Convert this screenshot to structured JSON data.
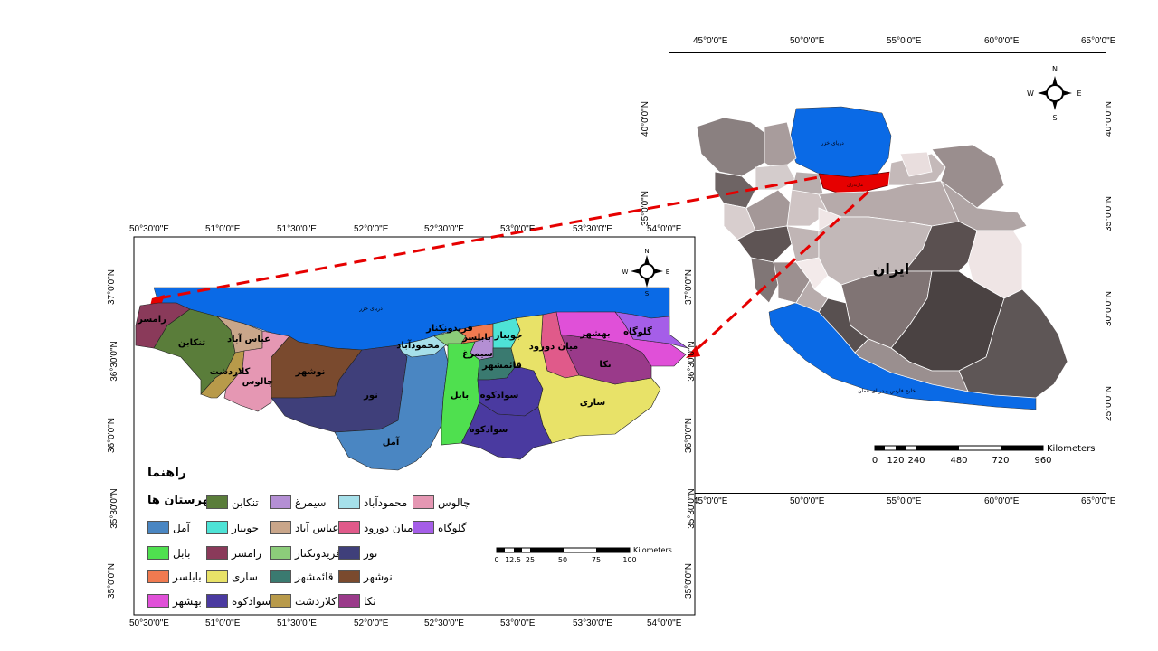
{
  "iran_map": {
    "lon_ticks": [
      "45°0'0\"E",
      "50°0'0\"E",
      "55°0'0\"E",
      "60°0'0\"E",
      "65°0'0\"E"
    ],
    "lat_ticks": [
      "40°0'0\"N",
      "35°0'0\"N",
      "30°0'0\"N",
      "25°0'0\"N"
    ],
    "country_label": "ایران",
    "caspian_label": "دریای خزر",
    "gulf_label": "خلیج فارس و دریای عمان",
    "province_label": "مازندران",
    "scale_unit": "Kilometers",
    "scale_ticks": [
      "0",
      "120",
      "240",
      "480",
      "720",
      "960"
    ],
    "north_arrow": {
      "n": "N",
      "s": "S",
      "e": "E",
      "w": "W"
    }
  },
  "maz_map": {
    "lon_ticks": [
      "50°30'0\"E",
      "51°0'0\"E",
      "51°30'0\"E",
      "52°0'0\"E",
      "52°30'0\"E",
      "53°0'0\"E",
      "53°30'0\"E",
      "54°0'0\"E"
    ],
    "lat_ticks": [
      "37°0'0\"N",
      "36°30'0\"N",
      "36°0'0\"N",
      "35°30'0\"N",
      "35°0'0\"N"
    ],
    "caspian_label": "دریای خزر",
    "scale_unit": "Kilometers",
    "scale_ticks": [
      "0",
      "12.5",
      "25",
      "50",
      "75",
      "100"
    ],
    "north_arrow": {
      "n": "N",
      "s": "S",
      "e": "E",
      "w": "W"
    },
    "county_labels": {
      "ramsar": "رامسر",
      "tonekabon": "تنکابن",
      "abbasabad": "عباس آباد",
      "kelardasht": "کلاردشت",
      "chalus": "چالوس",
      "nowshahr": "نوشهر",
      "nur": "نور",
      "amol": "آمل",
      "mahmudabad": "محمودآباد",
      "fereydunkenar": "فریدونکنار",
      "babolsar": "بابلسر",
      "juybar": "جویبار",
      "simorgh": "سیمرغ",
      "babol": "بابل",
      "qaemshahr": "قائمشهر",
      "savadkuh": "سوادکوه",
      "savadkuh_north": "سوادکوه",
      "miandorud": "میان دورود",
      "sari": "ساری",
      "behshahr": "بهشهر",
      "neka": "نکا",
      "galugah": "گلوگاه"
    }
  },
  "legend": {
    "title": "راهنما",
    "subtitle": "شهرستان ها",
    "items": [
      {
        "label": "تنکابن",
        "color": "#5a7d3a"
      },
      {
        "label": "سیمرغ",
        "color": "#b48fd4"
      },
      {
        "label": "محمودآباد",
        "color": "#a6e0ea"
      },
      {
        "label": "چالوس",
        "color": "#e597b3"
      },
      {
        "label": "آمل",
        "color": "#4a86c2"
      },
      {
        "label": "جویبار",
        "color": "#4ee3d6"
      },
      {
        "label": "عباس آباد",
        "color": "#c9a68a"
      },
      {
        "label": "میان دورود",
        "color": "#e05a8a"
      },
      {
        "label": "گلوگاه",
        "color": "#a55ee8"
      },
      {
        "label": "بابل",
        "color": "#4fe04f"
      },
      {
        "label": "رامسر",
        "color": "#8a3a5a"
      },
      {
        "label": "فریدونکنار",
        "color": "#8ccc7a"
      },
      {
        "label": "نور",
        "color": "#3f3f7a"
      },
      {
        "label": "بابلسر",
        "color": "#f07a50"
      },
      {
        "label": "ساری",
        "color": "#e8e268"
      },
      {
        "label": "قائمشهر",
        "color": "#3a7a70"
      },
      {
        "label": "نوشهر",
        "color": "#7a4a2e"
      },
      {
        "label": "بهشهر",
        "color": "#e050d8"
      },
      {
        "label": "سوادکوه",
        "color": "#4a3aa0"
      },
      {
        "label": "کلاردشت",
        "color": "#b89a4a"
      },
      {
        "label": "نکا",
        "color": "#9a3a8a"
      }
    ]
  },
  "colors": {
    "water": "#0a6ae6",
    "highlight": "#e60000",
    "connector": "#e60000"
  }
}
